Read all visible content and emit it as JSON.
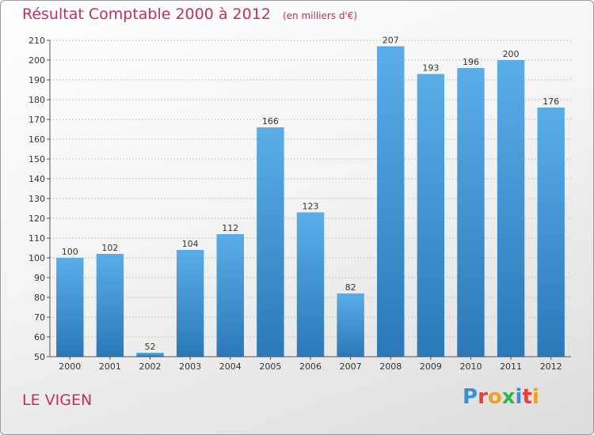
{
  "chart_data": {
    "type": "bar",
    "title": "Résultat Comptable 2000 à 2012",
    "subtitle": "(en milliers d'€)",
    "categories": [
      "2000",
      "2001",
      "2002",
      "2003",
      "2004",
      "2005",
      "2006",
      "2007",
      "2008",
      "2009",
      "2010",
      "2011",
      "2012"
    ],
    "values": [
      100,
      102,
      52,
      104,
      112,
      166,
      123,
      82,
      207,
      193,
      196,
      200,
      176
    ],
    "ylim": [
      50,
      210
    ],
    "yticks": [
      50,
      60,
      70,
      80,
      90,
      100,
      110,
      120,
      130,
      140,
      150,
      160,
      170,
      180,
      190,
      200,
      210
    ],
    "grid": true,
    "bar_color_top": "#5aaee8",
    "bar_color_bottom": "#2a78b8",
    "title_color": "#c0305a"
  },
  "footer": {
    "commune": "LE VIGEN",
    "logo_letters": [
      {
        "ch": "P",
        "color": "#3a8fd0"
      },
      {
        "ch": "r",
        "color": "#e2403a"
      },
      {
        "ch": "o",
        "color": "#f0a020"
      },
      {
        "ch": "x",
        "color": "#3ab04a"
      },
      {
        "ch": "i",
        "color": "#3a8fd0"
      },
      {
        "ch": "t",
        "color": "#e2403a"
      },
      {
        "ch": "i",
        "color": "#f0a020"
      }
    ]
  }
}
